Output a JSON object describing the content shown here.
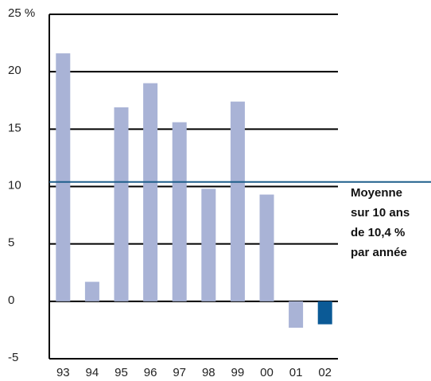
{
  "chart_data": {
    "type": "bar",
    "categories": [
      "93",
      "94",
      "95",
      "96",
      "97",
      "98",
      "99",
      "00",
      "01",
      "02"
    ],
    "values": [
      21.6,
      1.7,
      16.9,
      19.0,
      15.6,
      9.8,
      17.4,
      9.3,
      -2.3,
      -2.0
    ],
    "colors": [
      "#a9b3d6",
      "#a9b3d6",
      "#a9b3d6",
      "#a9b3d6",
      "#a9b3d6",
      "#a9b3d6",
      "#a9b3d6",
      "#a9b3d6",
      "#a9b3d6",
      "#0b5a96"
    ],
    "ylim": [
      -5,
      25
    ],
    "yticks": [
      -5,
      0,
      5,
      10,
      15,
      20,
      {
        "value": 25,
        "label": "25 %"
      }
    ],
    "grid": true,
    "average": {
      "value": 10.4,
      "color": "#1f5f8b",
      "label": [
        "Moyenne",
        "sur 10 ans",
        "de 10,4 %",
        "par année"
      ]
    }
  }
}
